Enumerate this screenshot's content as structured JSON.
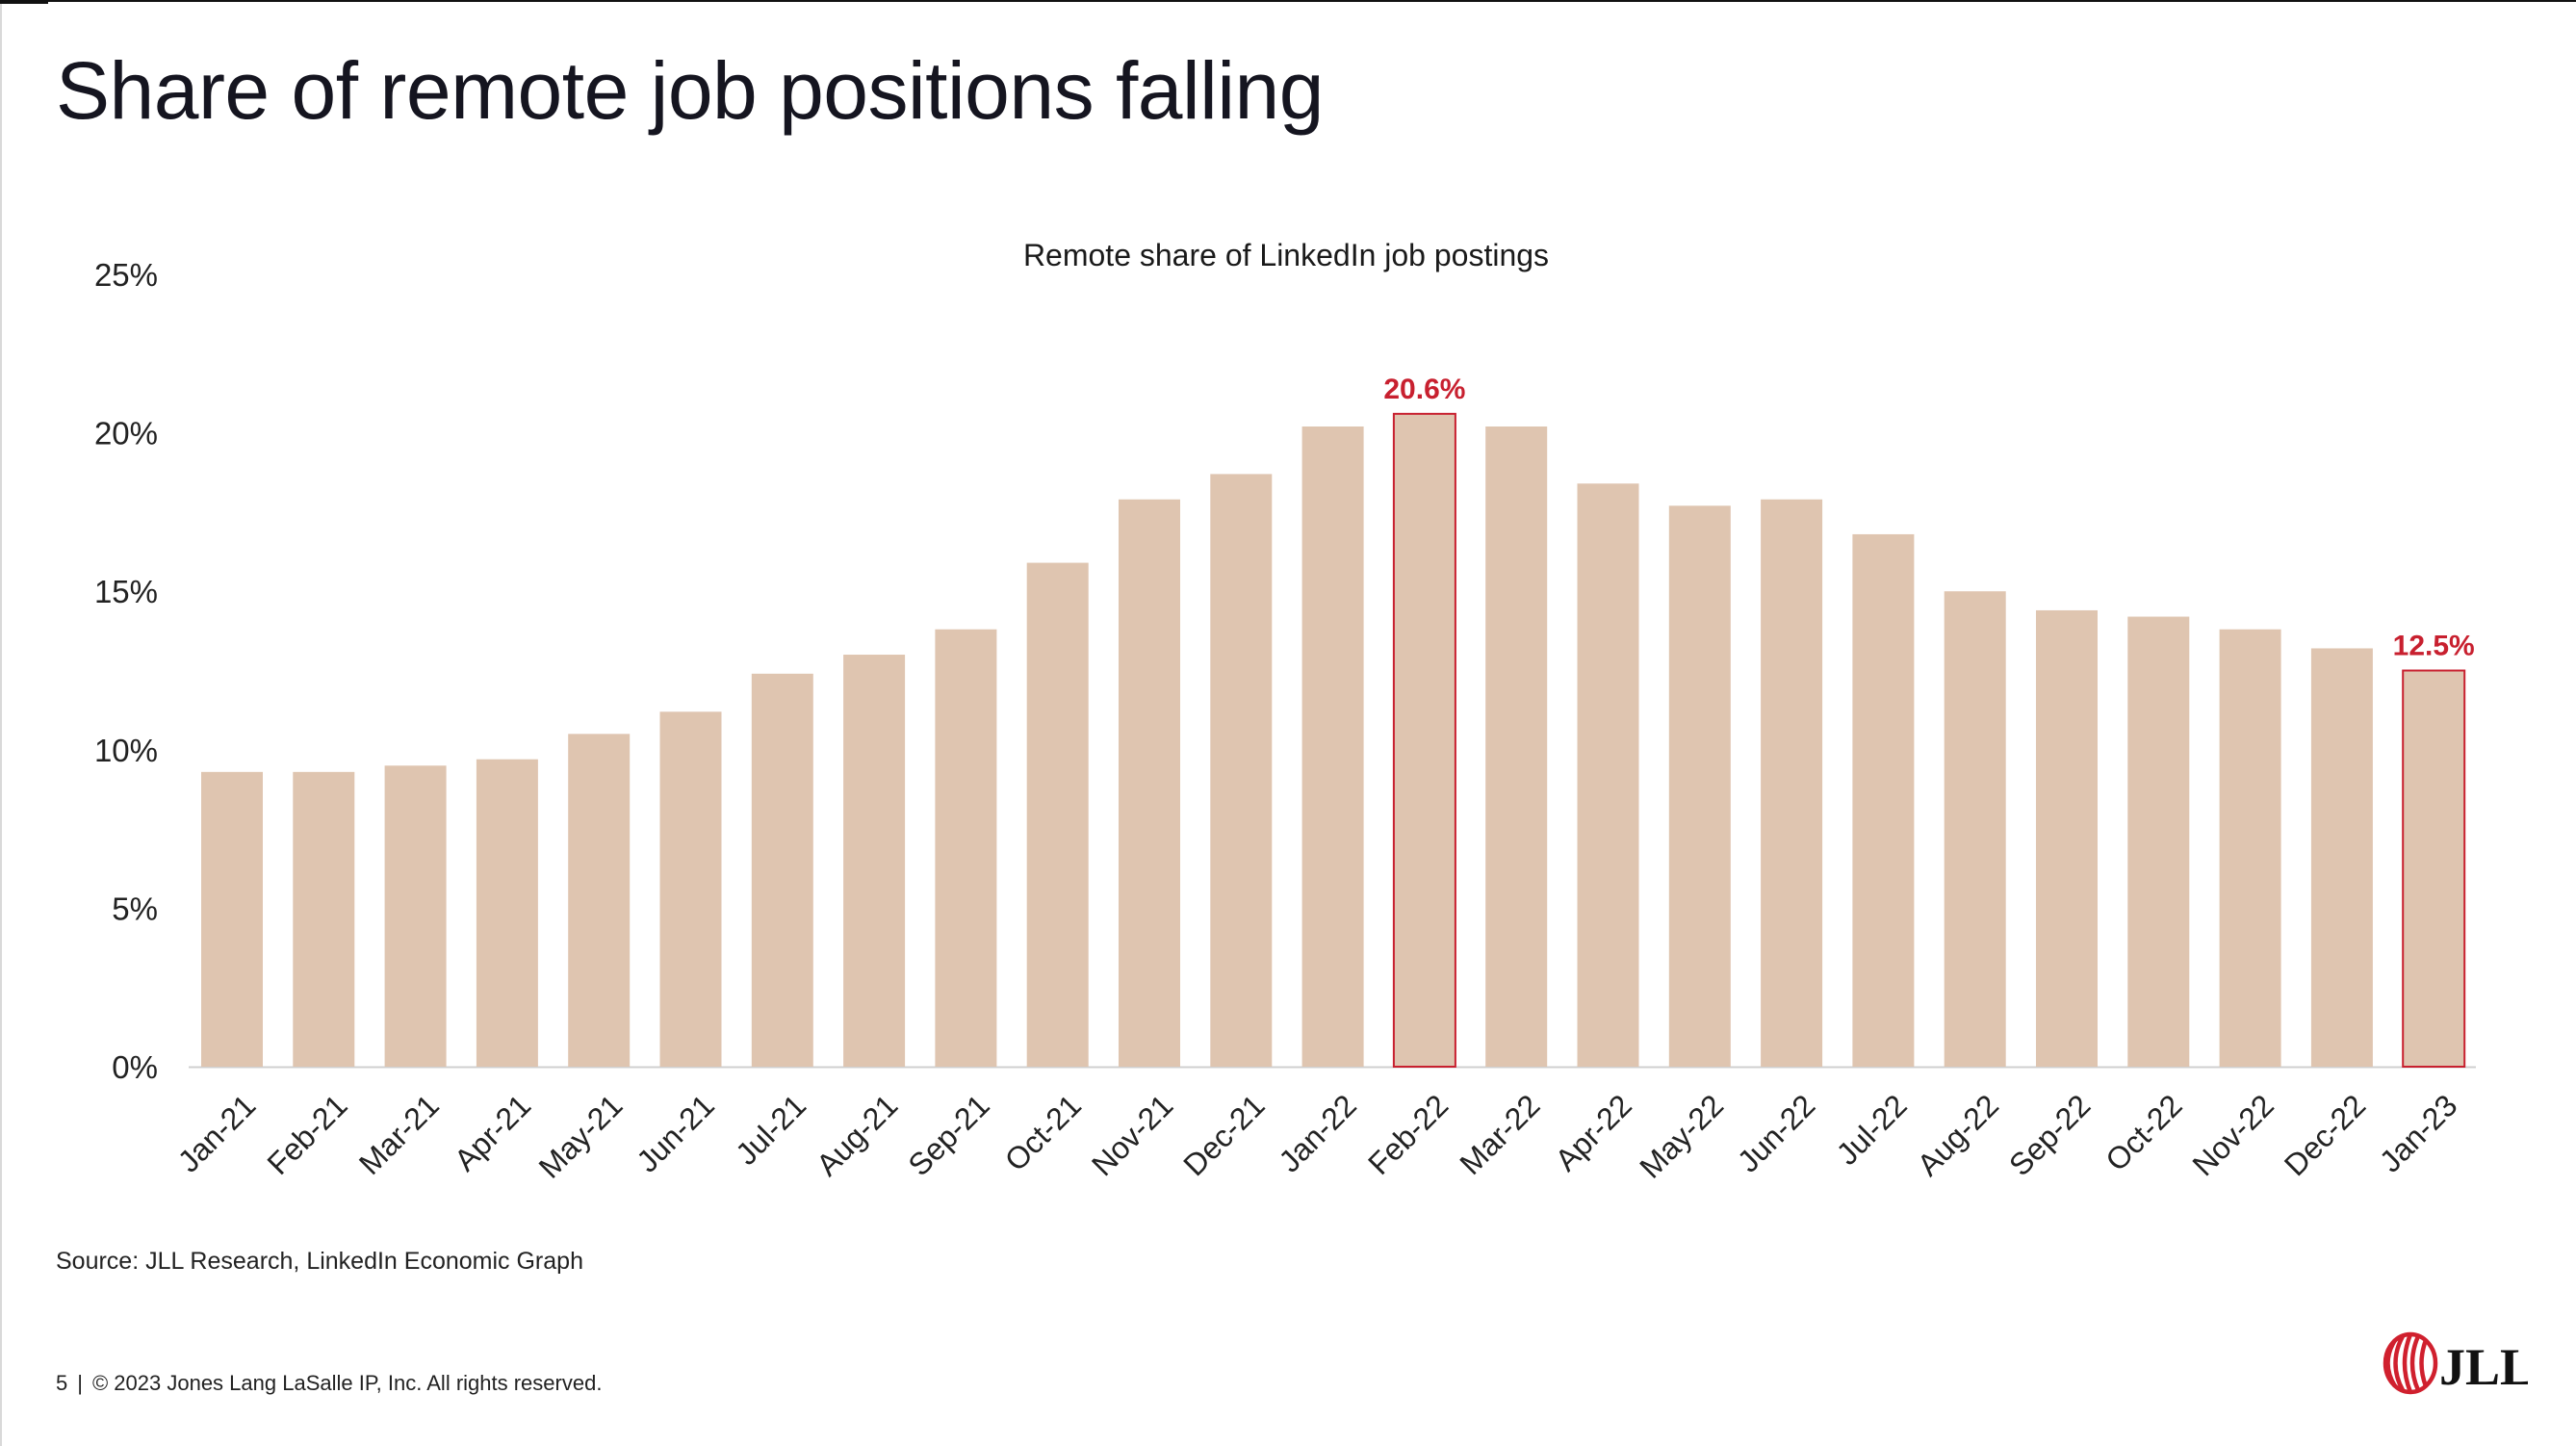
{
  "slide": {
    "title": "Share of remote job positions falling",
    "source": "Source: JLL Research, LinkedIn Economic Graph",
    "page_number": "5",
    "footer_separator": "|",
    "copyright": "© 2023 Jones Lang LaSalle IP, Inc. All rights reserved.",
    "logo_text": "JLL",
    "logo_icon": "jll-stripes-icon"
  },
  "colors": {
    "bar": "#dfc5b0",
    "highlight_edge": "#c8202f",
    "highlight_label": "#c8202f",
    "axis_text": "#222222",
    "baseline": "#d0d0d0"
  },
  "chart_data": {
    "type": "bar",
    "title": "Remote share of LinkedIn job postings",
    "xlabel": "",
    "ylabel": "",
    "ylim": [
      0,
      25
    ],
    "yticks": [
      "0%",
      "5%",
      "10%",
      "15%",
      "20%",
      "25%"
    ],
    "ytick_values": [
      0,
      5,
      10,
      15,
      20,
      25
    ],
    "grid": false,
    "legend": "none",
    "categories": [
      "Jan-21",
      "Feb-21",
      "Mar-21",
      "Apr-21",
      "May-21",
      "Jun-21",
      "Jul-21",
      "Aug-21",
      "Sep-21",
      "Oct-21",
      "Nov-21",
      "Dec-21",
      "Jan-22",
      "Feb-22",
      "Mar-22",
      "Apr-22",
      "May-22",
      "Jun-22",
      "Jul-22",
      "Aug-22",
      "Sep-22",
      "Oct-22",
      "Nov-22",
      "Dec-22",
      "Jan-23"
    ],
    "values": [
      9.3,
      9.3,
      9.5,
      9.7,
      10.5,
      11.2,
      12.4,
      13.0,
      13.8,
      15.9,
      17.9,
      18.7,
      20.2,
      20.6,
      20.2,
      18.4,
      17.7,
      17.9,
      16.8,
      15.0,
      14.4,
      14.2,
      13.8,
      13.2,
      12.5
    ],
    "highlighted": [
      {
        "category": "Feb-22",
        "label": "20.6%"
      },
      {
        "category": "Jan-23",
        "label": "12.5%"
      }
    ]
  }
}
